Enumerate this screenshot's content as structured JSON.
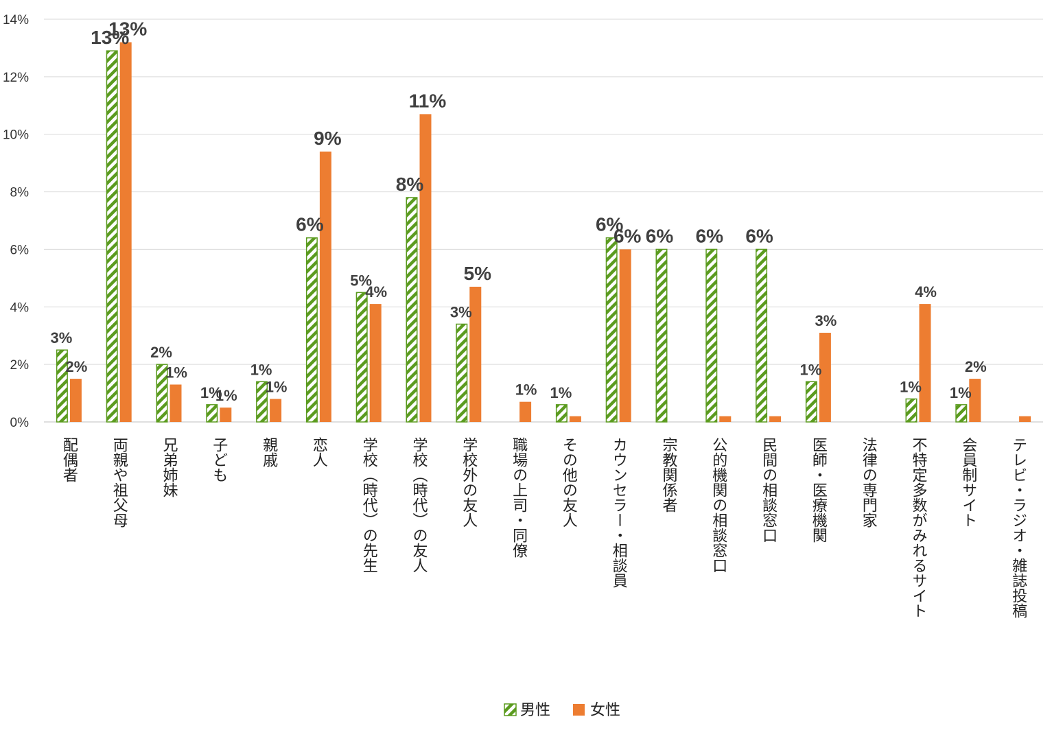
{
  "chart_data": {
    "type": "bar",
    "title": "",
    "xlabel": "",
    "ylabel": "",
    "ylim": [
      0,
      14
    ],
    "yticks": [
      0,
      2,
      4,
      6,
      8,
      10,
      12,
      14
    ],
    "ytick_labels": [
      "0%",
      "2%",
      "4%",
      "6%",
      "8%",
      "10%",
      "12%",
      "14%"
    ],
    "grid": true,
    "legend_position": "bottom-center",
    "categories": [
      "配偶者",
      "両親や祖父母",
      "兄弟姉妹",
      "子ども",
      "親戚",
      "恋人",
      "学校（時代）の先生",
      "学校（時代）の友人",
      "学校外の友人",
      "職場の上司・同僚",
      "その他の友人",
      "カウンセラー・相談員",
      "宗教関係者",
      "公的機関の相談窓口",
      "民間の相談窓口",
      "医師・医療機関",
      "法律の専門家",
      "不特定多数がみれるサイト",
      "会員制サイト",
      "テレビ・ラジオ・雑誌投稿"
    ],
    "series": [
      {
        "name": "男性",
        "color": "#5B9B1F",
        "pattern": "diagonal-stripes",
        "values": [
          2.5,
          12.9,
          2.0,
          0.6,
          1.4,
          6.4,
          4.5,
          7.8,
          3.4,
          0,
          0.6,
          6.4,
          6.0,
          6.0,
          6.0,
          1.4,
          0,
          0.8,
          0.6,
          0
        ],
        "labels": [
          "3%",
          "13%",
          "2%",
          "1%",
          "1%",
          "6%",
          "5%",
          "8%",
          "3%",
          "",
          "1%",
          "6%",
          "6%",
          "6%",
          "6%",
          "1%",
          "",
          "1%",
          "1%",
          ""
        ]
      },
      {
        "name": "女性",
        "color": "#ED7D31",
        "pattern": "solid",
        "values": [
          1.5,
          13.2,
          1.3,
          0.5,
          0.8,
          9.4,
          4.1,
          10.7,
          4.7,
          0.7,
          0.2,
          6.0,
          0,
          0.2,
          0.2,
          3.1,
          0,
          4.1,
          1.5,
          0.2
        ],
        "labels": [
          "2%",
          "13%",
          "1%",
          "1%",
          "1%",
          "9%",
          "4%",
          "11%",
          "5%",
          "1%",
          "",
          "6%",
          "",
          "",
          "",
          "3%",
          "",
          "4%",
          "2%",
          ""
        ]
      }
    ]
  },
  "legend": {
    "male": "男性",
    "female": "女性"
  }
}
